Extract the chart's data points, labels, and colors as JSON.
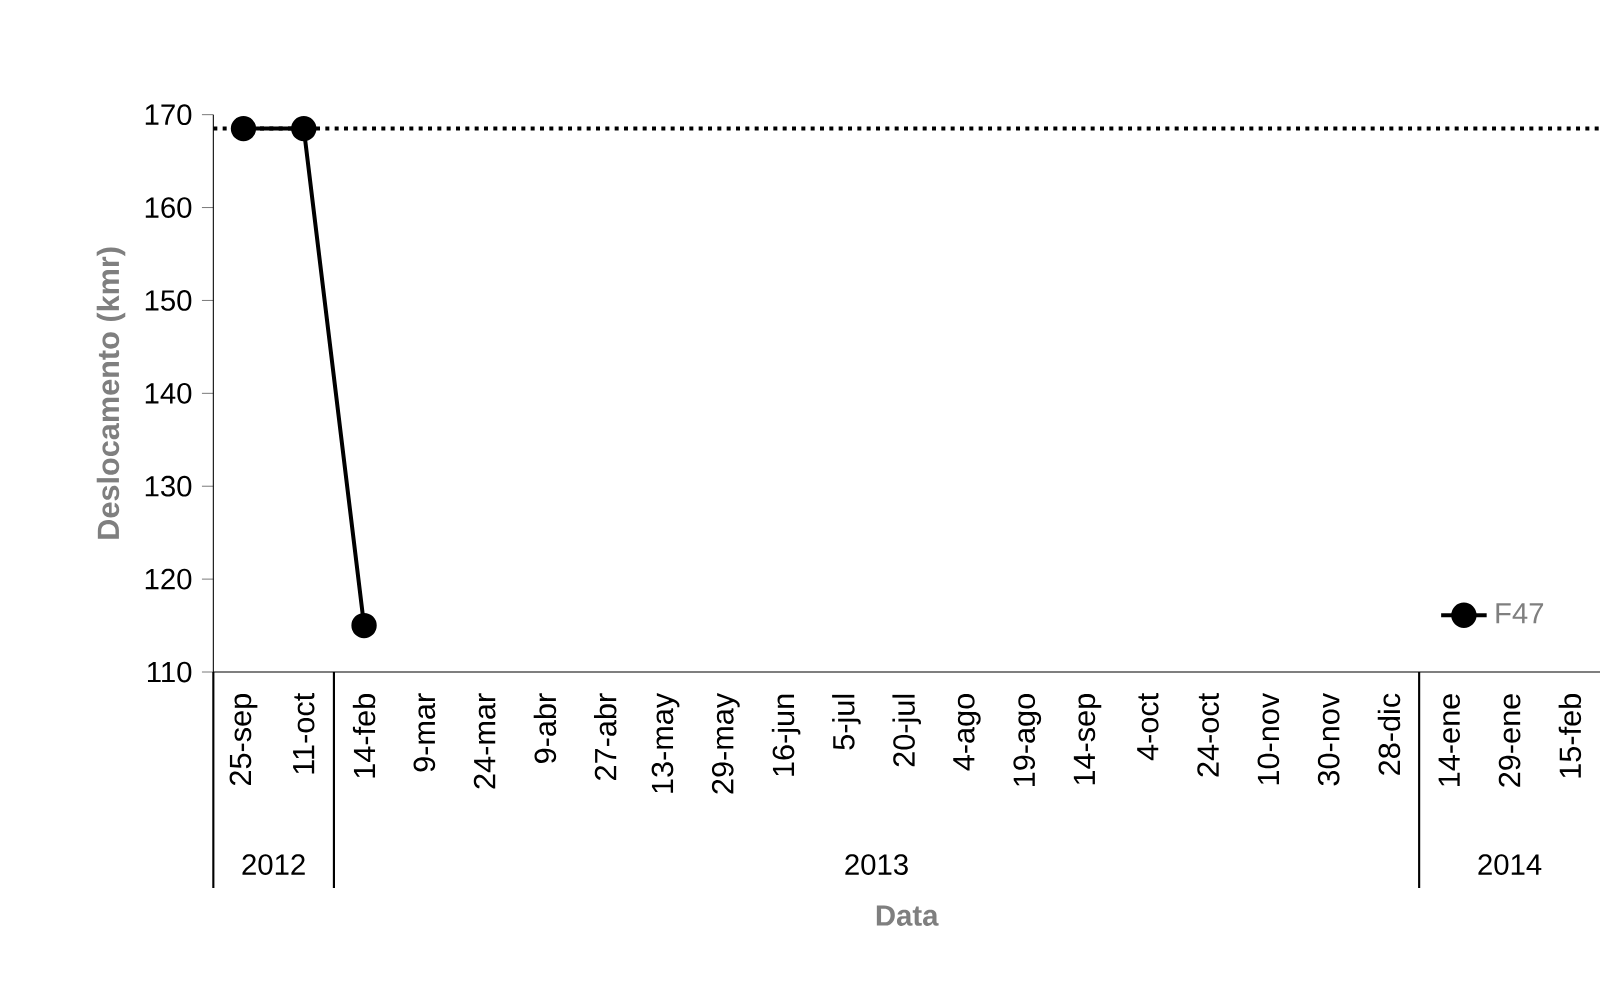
{
  "chart_data": {
    "type": "line",
    "xlabel": "Data",
    "ylabel": "Deslocamento (kmr)",
    "categories": [
      "25-sep",
      "11-oct",
      "14-feb",
      "9-mar",
      "24-mar",
      "9-abr",
      "27-abr",
      "13-may",
      "29-may",
      "16-jun",
      "5-jul",
      "20-jul",
      "4-ago",
      "19-ago",
      "14-sep",
      "4-oct",
      "24-oct",
      "10-nov",
      "30-nov",
      "28-dic",
      "14-ene",
      "29-ene",
      "15-feb"
    ],
    "series": [
      {
        "name": "F47",
        "color": "#000000",
        "values": [
          168.5,
          168.5,
          115,
          null,
          null,
          null,
          null,
          null,
          null,
          null,
          null,
          null,
          null,
          null,
          null,
          null,
          null,
          null,
          null,
          null,
          null,
          null,
          null
        ]
      }
    ],
    "ylim": [
      110,
      170
    ],
    "yticks": [
      110,
      120,
      130,
      140,
      150,
      160,
      170
    ],
    "ref_lines": [
      {
        "axis": "y",
        "value": 168.5,
        "line_style": "dotted",
        "color": "#000000"
      }
    ],
    "annotations": [
      "2012",
      "2013",
      "2014"
    ],
    "marker": "circle",
    "line_style": "solid",
    "legend": "bottom right",
    "grid": false
  }
}
